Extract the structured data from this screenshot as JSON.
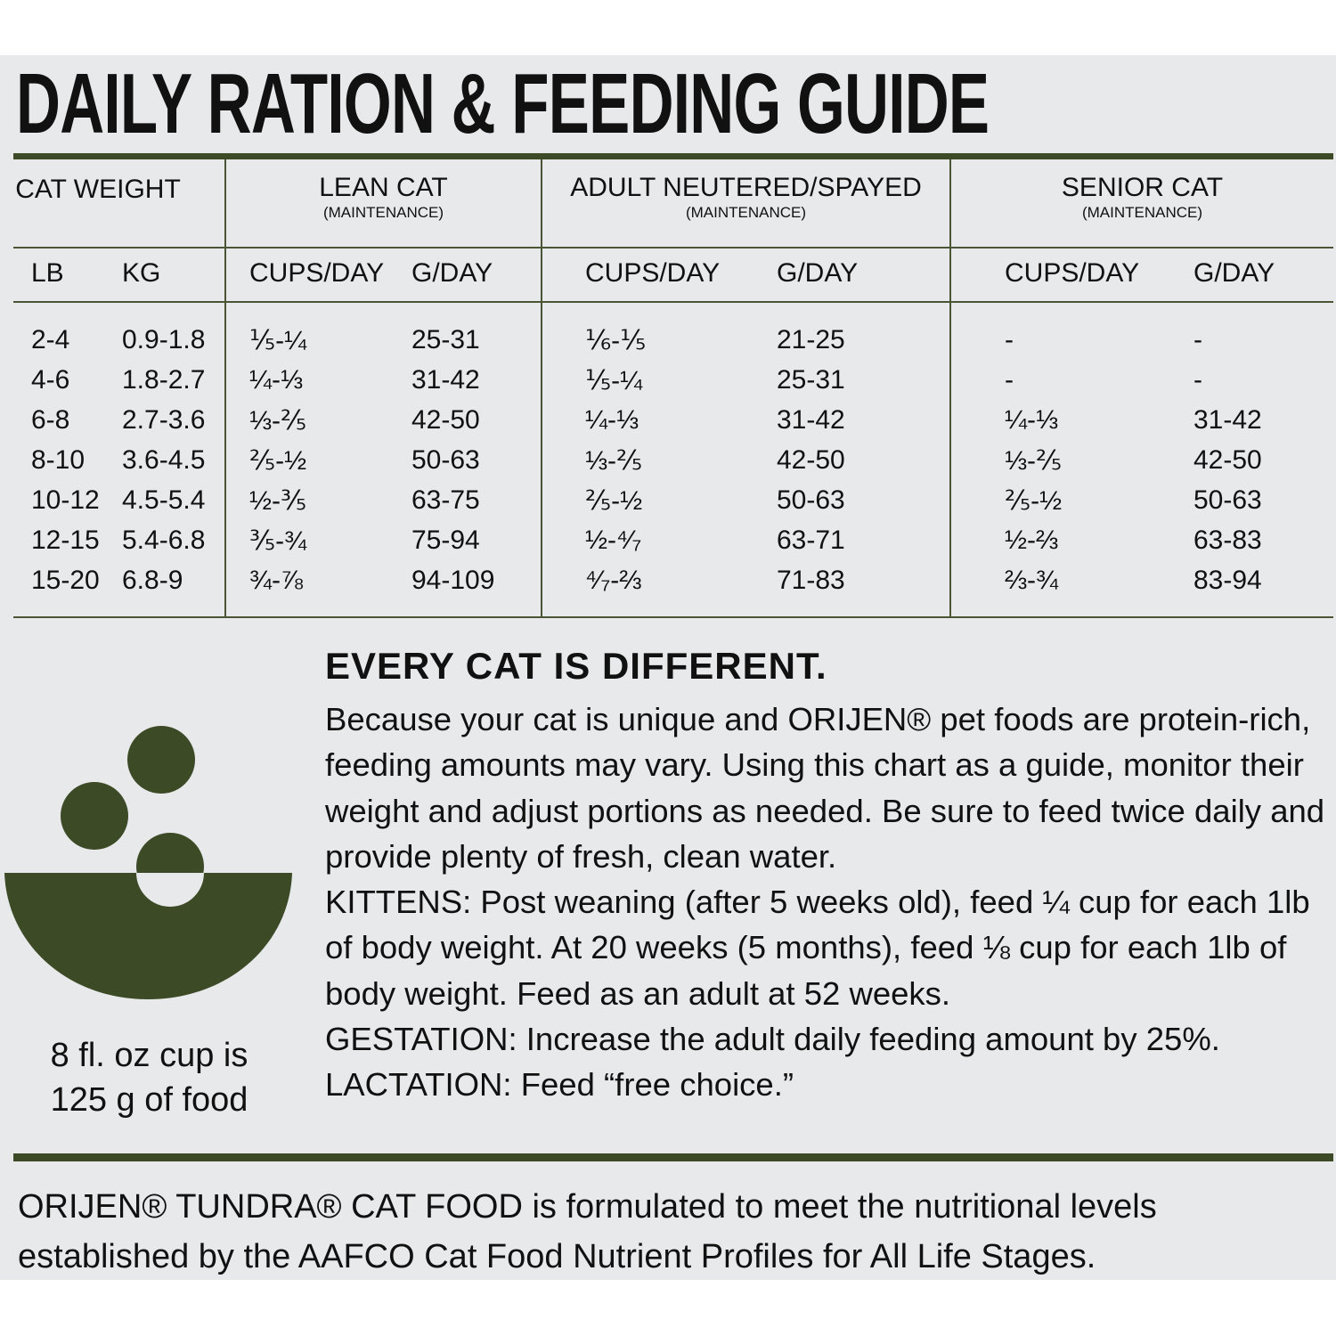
{
  "title": "DAILY RATION & FEEDING GUIDE",
  "table": {
    "groups": [
      {
        "name": "CAT WEIGHT"
      },
      {
        "name": "LEAN CAT",
        "note": "(MAINTENANCE)"
      },
      {
        "name": "ADULT NEUTERED/SPAYED",
        "note": "(MAINTENANCE)"
      },
      {
        "name": "SENIOR CAT",
        "note": "(MAINTENANCE)"
      }
    ],
    "columns": [
      "LB",
      "KG",
      "CUPS/DAY",
      "G/DAY",
      "CUPS/DAY",
      "G/DAY",
      "CUPS/DAY",
      "G/DAY"
    ],
    "rows": [
      [
        "2-4",
        "0.9-1.8",
        "⅕-¼",
        "25-31",
        "⅙-⅕",
        "21-25",
        "-",
        "-"
      ],
      [
        "4-6",
        "1.8-2.7",
        "¼-⅓",
        "31-42",
        "⅕-¼",
        "25-31",
        "-",
        "-"
      ],
      [
        "6-8",
        "2.7-3.6",
        "⅓-⅖",
        "42-50",
        "¼-⅓",
        "31-42",
        "¼-⅓",
        "31-42"
      ],
      [
        "8-10",
        "3.6-4.5",
        "⅖-½",
        "50-63",
        "⅓-⅖",
        "42-50",
        "⅓-⅖",
        "42-50"
      ],
      [
        "10-12",
        "4.5-5.4",
        "½-⅗",
        "63-75",
        "⅖-½",
        "50-63",
        "⅖-½",
        "50-63"
      ],
      [
        "12-15",
        "5.4-6.8",
        "⅗-¾",
        "75-94",
        "½-⁴⁄₇",
        "63-71",
        "½-⅔",
        "63-83"
      ],
      [
        "15-20",
        "6.8-9",
        "¾-⅞",
        "94-109",
        "⁴⁄₇-⅔",
        "71-83",
        "⅔-¾",
        "83-94"
      ]
    ]
  },
  "note": {
    "heading": "EVERY CAT IS DIFFERENT.",
    "paragraphs": [
      "Because your cat is unique and ORIJEN® pet foods are protein-rich, feeding amounts may vary. Using this chart as a guide, monitor their weight and adjust portions as needed. Be sure to feed twice daily and provide plenty of fresh, clean water.",
      "KITTENS: Post weaning (after 5 weeks old), feed ¼ cup for each 1lb of body weight. At 20 weeks (5 months), feed ⅛ cup for each 1lb of body weight. Feed as an adult at 52 weeks.",
      "GESTATION: Increase the adult daily feeding amount by 25%.",
      "LACTATION: Feed “free choice.”"
    ]
  },
  "cup_caption": "8 fl. oz cup is 125 g of food",
  "footer": "ORIJEN® TUNDRA® CAT FOOD is formulated to meet the nutritional levels established by the AAFCO Cat Food Nutrient Profiles for All Life Stages."
}
